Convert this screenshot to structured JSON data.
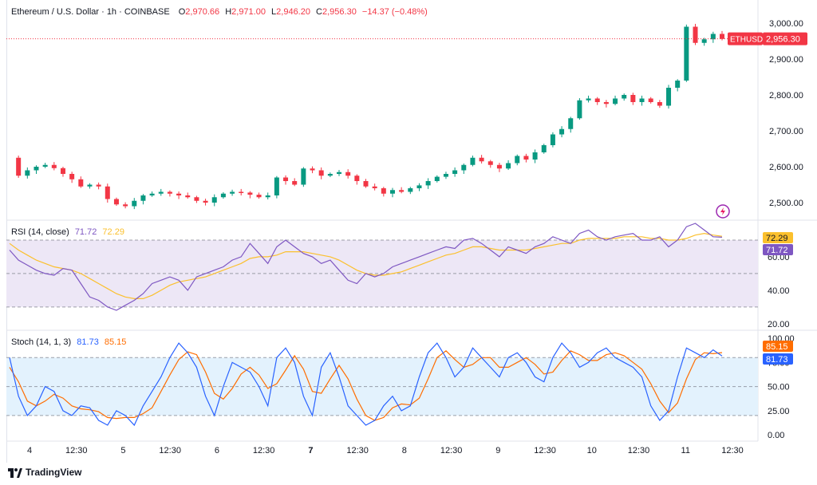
{
  "header": {
    "symbol_title": "Ethereum / U.S. Dollar · 1h · COINBASE",
    "open_label": "O",
    "open": "2,970.66",
    "high_label": "H",
    "high": "2,971.00",
    "low_label": "L",
    "low": "2,946.20",
    "close_label": "C",
    "close": "2,956.30",
    "change": "−14.37 (−0.48%)"
  },
  "price_badge": {
    "symbol": "ETHUSD",
    "value": "2,956.30"
  },
  "rsi_label": {
    "name": "RSI (14, close)",
    "v1": "71.72",
    "v2": "72.29"
  },
  "stoch_label": {
    "name": "Stoch (14, 1, 3)",
    "v1": "81.73",
    "v2": "85.15"
  },
  "branding": {
    "name": "TradingView"
  },
  "colors": {
    "up": "#089981",
    "down": "#f23645",
    "rsi": "#7e57c2",
    "rsi_ma": "#fbc02d",
    "stoch_k": "#2962ff",
    "stoch_d": "#ff6d00",
    "rsi_band": "#ede7f6",
    "stoch_band": "#e3f2fd"
  },
  "chart_data": [
    {
      "type": "candlestick",
      "title": "Ethereum / U.S. Dollar · 1h · COINBASE",
      "y_ticks": [
        "3,000.00",
        "2,900.00",
        "2,800.00",
        "2,700.00",
        "2,600.00",
        "2,500.00"
      ],
      "ylim": [
        2460,
        3020
      ],
      "x_ticks": [
        "4",
        "12:30",
        "5",
        "12:30",
        "6",
        "12:30",
        "7",
        "12:30",
        "8",
        "12:30",
        "9",
        "12:30",
        "10",
        "12:30",
        "11",
        "12:30"
      ],
      "last_price": 2956.3,
      "close_path": [
        2625,
        2575,
        2590,
        2600,
        2605,
        2596,
        2580,
        2565,
        2545,
        2550,
        2545,
        2510,
        2495,
        2490,
        2505,
        2520,
        2525,
        2530,
        2525,
        2520,
        2515,
        2505,
        2500,
        2515,
        2525,
        2530,
        2528,
        2522,
        2515,
        2520,
        2570,
        2560,
        2550,
        2595,
        2590,
        2575,
        2580,
        2585,
        2575,
        2560,
        2545,
        2540,
        2525,
        2535,
        2530,
        2540,
        2548,
        2560,
        2572,
        2580,
        2590,
        2605,
        2625,
        2615,
        2605,
        2595,
        2610,
        2630,
        2620,
        2640,
        2660,
        2690,
        2705,
        2735,
        2785,
        2790,
        2780,
        2775,
        2790,
        2800,
        2780,
        2790,
        2780,
        2770,
        2820,
        2840,
        2990,
        2945,
        2955,
        2970,
        2956
      ]
    },
    {
      "type": "line",
      "title": "RSI (14, close)",
      "y_ticks": [
        "60.00",
        "40.00",
        "20.00"
      ],
      "ylim": [
        18,
        80
      ],
      "band": [
        30,
        70
      ],
      "series": [
        {
          "name": "RSI",
          "current": 71.72,
          "values": [
            64,
            58,
            55,
            52,
            50,
            49,
            53,
            52,
            44,
            36,
            34,
            30,
            28,
            31,
            34,
            38,
            44,
            46,
            48,
            46,
            40,
            48,
            50,
            52,
            54,
            58,
            60,
            68,
            62,
            56,
            66,
            70,
            66,
            62,
            60,
            56,
            58,
            52,
            46,
            44,
            50,
            48,
            50,
            54,
            56,
            58,
            60,
            62,
            64,
            66,
            65,
            70,
            71,
            68,
            64,
            60,
            66,
            64,
            62,
            66,
            68,
            72,
            70,
            68,
            74,
            76,
            72,
            70,
            72,
            73,
            74,
            70,
            70,
            72,
            66,
            70,
            78,
            80,
            76,
            72,
            71.72
          ]
        },
        {
          "name": "RSI MA",
          "current": 72.29,
          "values": [
            68,
            64,
            61,
            58,
            56,
            54,
            53,
            52,
            50,
            47,
            44,
            41,
            38,
            36,
            35,
            35,
            37,
            40,
            43,
            45,
            46,
            47,
            48,
            50,
            52,
            54,
            56,
            59,
            60,
            60,
            61,
            63,
            63,
            63,
            62,
            61,
            60,
            58,
            55,
            52,
            50,
            49,
            49,
            50,
            51,
            53,
            55,
            57,
            59,
            61,
            62,
            64,
            66,
            66,
            65,
            64,
            64,
            64,
            64,
            65,
            66,
            67,
            68,
            68,
            70,
            71,
            71,
            71,
            71,
            72,
            72,
            72,
            71,
            71,
            70,
            70,
            71,
            73,
            74,
            73,
            72.29
          ]
        }
      ]
    },
    {
      "type": "line",
      "title": "Stoch (14, 1, 3)",
      "y_ticks": [
        "100.00",
        "75.00",
        "50.00",
        "25.00",
        "0.00"
      ],
      "ylim": [
        -4,
        105
      ],
      "band": [
        20,
        80
      ],
      "series": [
        {
          "name": "%K",
          "current": 81.73,
          "values": [
            80,
            40,
            20,
            30,
            50,
            45,
            25,
            20,
            30,
            28,
            15,
            10,
            25,
            20,
            10,
            30,
            45,
            60,
            80,
            95,
            85,
            70,
            40,
            20,
            50,
            75,
            70,
            65,
            50,
            30,
            80,
            90,
            75,
            40,
            20,
            70,
            85,
            60,
            30,
            20,
            10,
            15,
            30,
            40,
            25,
            30,
            60,
            85,
            95,
            80,
            60,
            70,
            90,
            80,
            70,
            60,
            80,
            85,
            75,
            60,
            55,
            80,
            95,
            85,
            70,
            75,
            85,
            90,
            80,
            75,
            70,
            60,
            30,
            15,
            25,
            60,
            90,
            85,
            80,
            88,
            81.73
          ]
        },
        {
          "name": "%D",
          "current": 85.15,
          "values": [
            70,
            55,
            35,
            30,
            35,
            42,
            38,
            30,
            27,
            26,
            24,
            18,
            17,
            18,
            18,
            22,
            28,
            45,
            62,
            78,
            86,
            83,
            65,
            43,
            37,
            48,
            63,
            70,
            62,
            48,
            53,
            67,
            82,
            68,
            45,
            43,
            58,
            72,
            58,
            37,
            20,
            15,
            18,
            28,
            32,
            31,
            38,
            58,
            80,
            87,
            78,
            70,
            73,
            80,
            80,
            70,
            70,
            75,
            80,
            73,
            63,
            65,
            77,
            87,
            83,
            77,
            77,
            83,
            85,
            82,
            75,
            68,
            53,
            35,
            23,
            33,
            58,
            78,
            85,
            84,
            85.15
          ]
        }
      ]
    }
  ]
}
